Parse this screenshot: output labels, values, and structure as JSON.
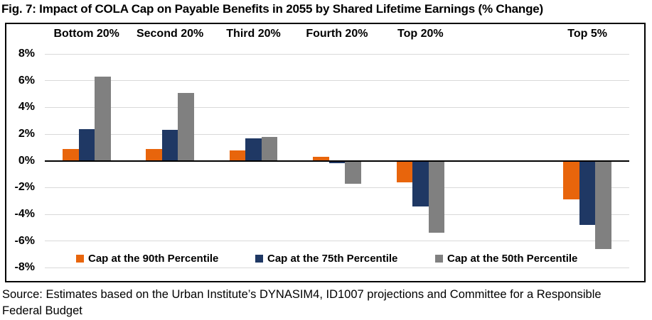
{
  "title": "Fig. 7: Impact of COLA Cap on Payable Benefits in 2055 by Shared Lifetime Earnings (% Change)",
  "source": {
    "line1": "Source: Estimates based on the Urban Institute’s DYNASIM4, ID1007 projections and Committee for a Responsible",
    "line2": "Federal Budget"
  },
  "chart_data": {
    "type": "bar",
    "title": "Fig. 7: Impact of COLA Cap on Payable Benefits in 2055 by Shared Lifetime Earnings (% Change)",
    "categories": [
      "Bottom 20%",
      "Second 20%",
      "Third 20%",
      "Fourth 20%",
      "Top 20%",
      "Top 5%"
    ],
    "series": [
      {
        "name": "Cap at the 90th Percentile",
        "color": "#E8650C",
        "values": [
          0.9,
          0.9,
          0.8,
          0.3,
          -1.6,
          -2.9
        ]
      },
      {
        "name": "Cap at the 75th Percentile",
        "color": "#1F3864",
        "values": [
          2.4,
          2.3,
          1.7,
          -0.2,
          -3.4,
          -4.8
        ]
      },
      {
        "name": "Cap at the 50th Percentile",
        "color": "#808080",
        "values": [
          6.3,
          5.1,
          1.8,
          -1.7,
          -5.4,
          -6.6
        ]
      }
    ],
    "xlabel": "",
    "ylabel": "",
    "ylim": [
      -8,
      8
    ],
    "ytick_step": 2,
    "ytick_labels": [
      "8%",
      "6%",
      "4%",
      "2%",
      "0%",
      "-2%",
      "-4%",
      "-6%",
      "-8%"
    ],
    "grid": true,
    "gridline_color": "#d9d9d9",
    "category_label_position": "top",
    "legend_position": "bottom-inside",
    "slot_count": 7,
    "slot_of_category": [
      0,
      1,
      2,
      3,
      4,
      6
    ]
  }
}
